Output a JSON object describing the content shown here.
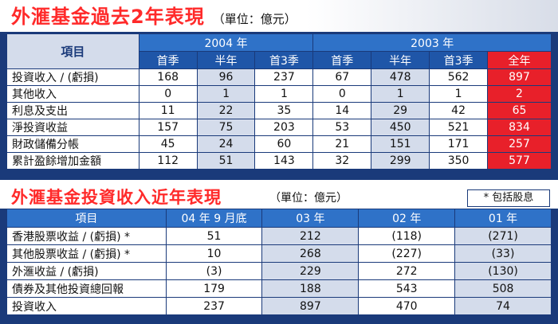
{
  "table1": {
    "title": "外滙基金過去2年表現",
    "unit": "（單位：億元）",
    "item_header": "項目",
    "year_2004": "2004 年",
    "year_2003": "2003 年",
    "sub_2004": [
      "首季",
      "半年",
      "首3季"
    ],
    "sub_2003": [
      "首季",
      "半年",
      "首3季"
    ],
    "full_year": "全年",
    "rows": [
      {
        "label": "投資收入 / (虧損)",
        "v2004": [
          "168",
          "96",
          "237"
        ],
        "v2003": [
          "67",
          "478",
          "562"
        ],
        "full": "897"
      },
      {
        "label": "其他收入",
        "v2004": [
          "0",
          "1",
          "1"
        ],
        "v2003": [
          "0",
          "1",
          "1"
        ],
        "full": "2"
      },
      {
        "label": "利息及支出",
        "v2004": [
          "11",
          "22",
          "35"
        ],
        "v2003": [
          "14",
          "29",
          "42"
        ],
        "full": "65"
      },
      {
        "label": "淨投資收益",
        "v2004": [
          "157",
          "75",
          "203"
        ],
        "v2003": [
          "53",
          "450",
          "521"
        ],
        "full": "834"
      },
      {
        "label": "財政儲備分帳",
        "v2004": [
          "45",
          "24",
          "60"
        ],
        "v2003": [
          "21",
          "151",
          "171"
        ],
        "full": "257"
      },
      {
        "label": "累計盈餘增加金額",
        "v2004": [
          "112",
          "51",
          "143"
        ],
        "v2003": [
          "32",
          "299",
          "350"
        ],
        "full": "577"
      }
    ]
  },
  "table2": {
    "title": "外滙基金投資收入近年表現",
    "unit": "（單位：億元）",
    "note": "* 包括股息",
    "headers": [
      "項目",
      "04 年 9 月底",
      "03 年",
      "02 年",
      "01 年"
    ],
    "rows": [
      {
        "label": "香港股票收益 / (虧損) *",
        "values": [
          "51",
          "212",
          "(118)",
          "(271)"
        ]
      },
      {
        "label": "其他股票收益 / (虧損) *",
        "values": [
          "10",
          "268",
          "(227)",
          "(33)"
        ]
      },
      {
        "label": "外滙收益 / (虧損)",
        "values": [
          "(3)",
          "229",
          "272",
          "(130)"
        ]
      },
      {
        "label": "債券及其他投資總回報",
        "values": [
          "179",
          "188",
          "543",
          "508"
        ]
      },
      {
        "label": "投資收入",
        "values": [
          "237",
          "897",
          "470",
          "74"
        ]
      }
    ]
  },
  "colors": {
    "title_red": "#ff2a2a",
    "header_blue": "#2f72c8",
    "sub_header_blue": "#1f56a8",
    "cell_light_blue": "#d4dceb",
    "full_year_red": "#e8202a",
    "frame_navy": "#1a3a7a"
  }
}
